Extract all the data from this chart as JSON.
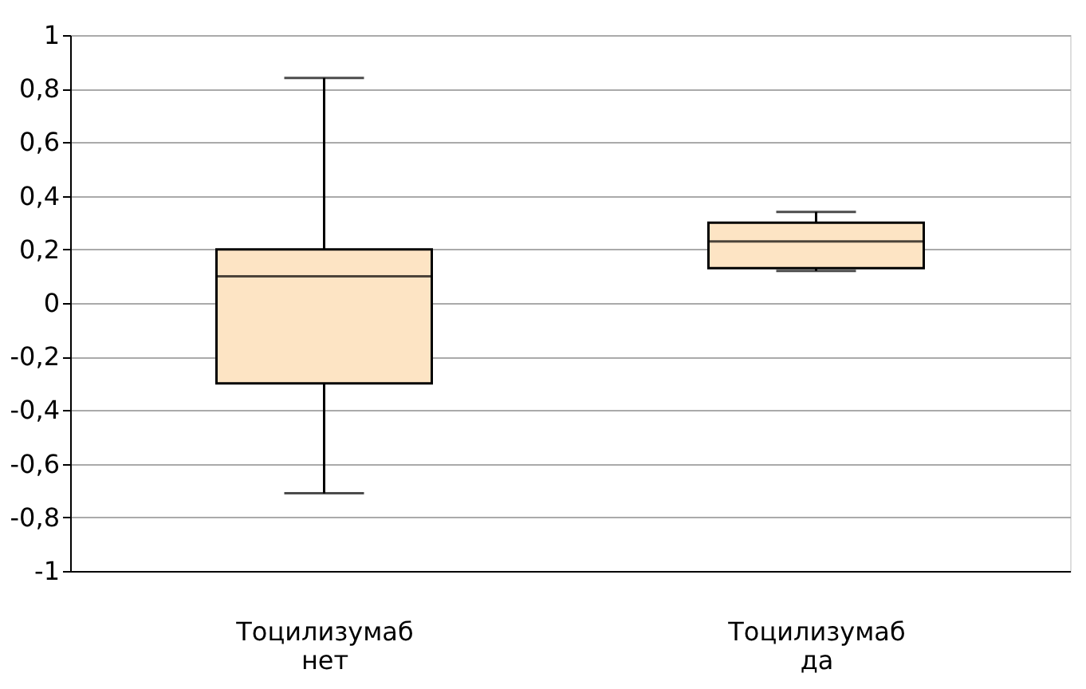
{
  "chart_data": {
    "type": "box",
    "categories": [
      "Тоцилизумаб\nнет",
      "Тоцилизумаб\nда"
    ],
    "boxes": [
      {
        "low": -0.71,
        "q1": -0.3,
        "median": 0.1,
        "q3": 0.2,
        "high": 0.84
      },
      {
        "low": 0.12,
        "q1": 0.13,
        "median": 0.23,
        "q3": 0.3,
        "high": 0.34
      }
    ],
    "color": "#fde4c4",
    "ylim": [
      -1,
      1
    ],
    "yticks": [
      -1,
      {
        "value": -0.8,
        "label": "-0,8"
      },
      {
        "value": -0.6,
        "label": "-0,6"
      },
      {
        "value": -0.4,
        "label": "-0,4"
      },
      {
        "value": -0.2,
        "label": "-0,2"
      },
      0,
      {
        "value": 0.2,
        "label": "0,2"
      },
      {
        "value": 0.4,
        "label": "0,4"
      },
      {
        "value": 0.6,
        "label": "0,6"
      },
      {
        "value": 0.8,
        "label": "0,8"
      },
      1
    ],
    "grid": "y"
  }
}
